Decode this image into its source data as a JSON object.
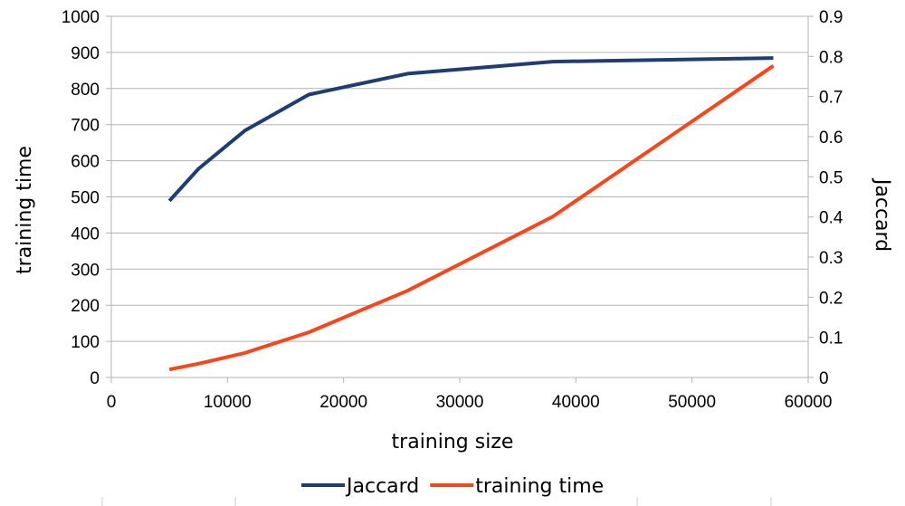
{
  "chart_data": {
    "type": "line",
    "xlabel": "training size",
    "ylabel_left": "training time",
    "ylabel_right": "Jaccard",
    "xlim": [
      0,
      60000
    ],
    "xticks": [
      "0",
      "10000",
      "20000",
      "30000",
      "40000",
      "50000",
      "60000"
    ],
    "ylim_left": [
      0,
      1000
    ],
    "yticks_left": [
      "0",
      "100",
      "200",
      "300",
      "400",
      "500",
      "600",
      "700",
      "800",
      "900",
      "1000"
    ],
    "ylim_right": [
      0,
      0.9
    ],
    "yticks_right": [
      "0",
      "0.1",
      "0.2",
      "0.3",
      "0.4",
      "0.5",
      "0.6",
      "0.7",
      "0.8",
      "0.9"
    ],
    "grid": true,
    "legend_position": "bottom",
    "series": [
      {
        "name": "Jaccard",
        "axis": "right",
        "color": "#1f3c73",
        "x": [
          5000,
          7500,
          11500,
          17000,
          25500,
          38000,
          57000
        ],
        "y": [
          0.44,
          0.52,
          0.615,
          0.705,
          0.757,
          0.787,
          0.796
        ]
      },
      {
        "name": "training time",
        "axis": "left",
        "color": "#f4471c",
        "x": [
          5000,
          7500,
          11500,
          17000,
          25500,
          38000,
          57000
        ],
        "y": [
          22,
          38,
          68,
          125,
          240,
          445,
          863
        ]
      }
    ]
  }
}
